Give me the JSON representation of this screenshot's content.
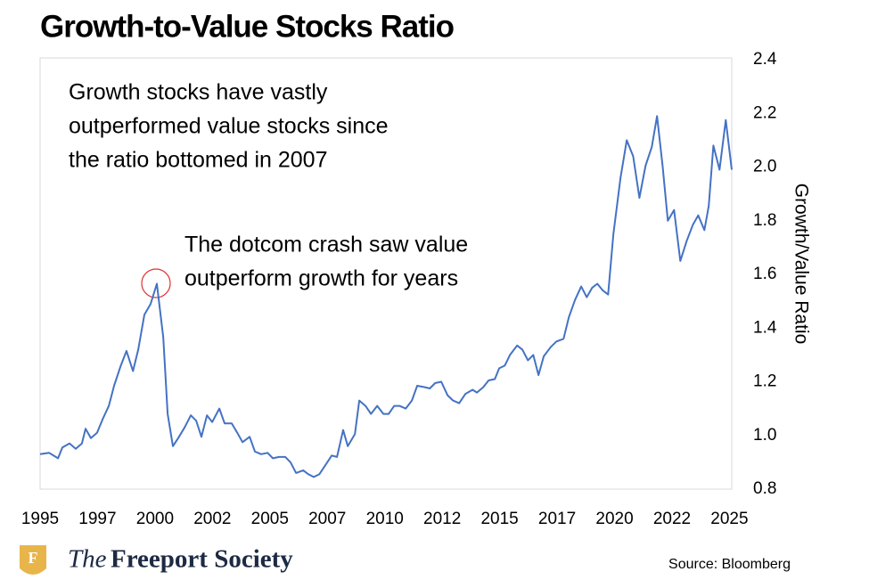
{
  "chart_data": {
    "type": "line",
    "title": "Growth-to-Value Stocks Ratio",
    "y_axis_label": "Growth/Value Ratio",
    "annotations": [
      {
        "lines": [
          "Growth stocks have vastly",
          "outperformed value stocks since",
          "the ratio bottomed in 2007"
        ]
      },
      {
        "lines": [
          "The dotcom crash saw value",
          "outperform growth for years"
        ]
      }
    ],
    "source": "Source: Bloomberg",
    "brand": {
      "logo": "F",
      "prefix": "The",
      "name": "Freeport Society"
    },
    "color": "#4472c4",
    "x": [
      1995.0,
      1995.39,
      1995.78,
      1995.97,
      1996.28,
      1996.55,
      1996.82,
      1996.98,
      1997.21,
      1997.48,
      1997.72,
      1997.99,
      1998.22,
      1998.49,
      1998.76,
      1999.04,
      1999.27,
      1999.54,
      1999.81,
      2000.08,
      2000.36,
      2000.55,
      2000.78,
      2001.01,
      2001.29,
      2001.56,
      2001.79,
      2002.02,
      2002.26,
      2002.49,
      2002.8,
      2003.03,
      2003.34,
      2003.58,
      2003.81,
      2004.12,
      2004.35,
      2004.62,
      2004.9,
      2005.13,
      2005.4,
      2005.67,
      2005.9,
      2006.14,
      2006.45,
      2006.68,
      2006.91,
      2007.15,
      2007.42,
      2007.69,
      2007.92,
      2008.19,
      2008.39,
      2008.7,
      2008.89,
      2009.16,
      2009.4,
      2009.67,
      2009.94,
      2010.17,
      2010.41,
      2010.64,
      2010.91,
      2011.18,
      2011.41,
      2011.72,
      2011.96,
      2012.19,
      2012.46,
      2012.73,
      2012.97,
      2013.24,
      2013.51,
      2013.82,
      2014.01,
      2014.29,
      2014.52,
      2014.79,
      2014.98,
      2015.22,
      2015.45,
      2015.76,
      2015.99,
      2016.23,
      2016.46,
      2016.69,
      2016.92,
      2017.23,
      2017.47,
      2017.78,
      2018.01,
      2018.28,
      2018.55,
      2018.79,
      2019.02,
      2019.25,
      2019.49,
      2019.72,
      2019.95,
      2020.26,
      2020.53,
      2020.81,
      2021.08,
      2021.35,
      2021.62,
      2021.85,
      2022.09,
      2022.32,
      2022.59,
      2022.86,
      2023.14,
      2023.41,
      2023.64,
      2023.91,
      2024.1,
      2024.3,
      2024.57,
      2024.84,
      2025.1
    ],
    "values": [
      0.93,
      0.935,
      0.915,
      0.955,
      0.97,
      0.95,
      0.97,
      1.025,
      0.99,
      1.01,
      1.06,
      1.11,
      1.185,
      1.255,
      1.315,
      1.24,
      1.32,
      1.45,
      1.49,
      1.565,
      1.365,
      1.08,
      0.96,
      0.99,
      1.03,
      1.075,
      1.055,
      0.995,
      1.075,
      1.05,
      1.1,
      1.045,
      1.045,
      1.01,
      0.975,
      0.995,
      0.94,
      0.93,
      0.935,
      0.915,
      0.92,
      0.92,
      0.9,
      0.86,
      0.87,
      0.855,
      0.845,
      0.855,
      0.89,
      0.925,
      0.92,
      1.02,
      0.96,
      1.005,
      1.13,
      1.11,
      1.08,
      1.11,
      1.08,
      1.08,
      1.11,
      1.11,
      1.1,
      1.13,
      1.185,
      1.18,
      1.175,
      1.195,
      1.2,
      1.15,
      1.13,
      1.12,
      1.155,
      1.17,
      1.16,
      1.18,
      1.205,
      1.21,
      1.25,
      1.26,
      1.3,
      1.335,
      1.32,
      1.28,
      1.3,
      1.225,
      1.295,
      1.33,
      1.35,
      1.36,
      1.44,
      1.505,
      1.555,
      1.515,
      1.55,
      1.565,
      1.54,
      1.525,
      1.75,
      1.96,
      2.1,
      2.04,
      1.885,
      2.005,
      2.075,
      2.19,
      2.005,
      1.8,
      1.84,
      1.65,
      1.725,
      1.785,
      1.82,
      1.765,
      1.855,
      2.08,
      1.99,
      2.175,
      1.99
    ],
    "xlim": [
      1995,
      2025.1
    ],
    "xticks": [
      1995,
      {
        "value": 1997.5,
        "label": "1997"
      },
      2000,
      {
        "value": 2002.5,
        "label": "2002"
      },
      2005,
      {
        "value": 2007.5,
        "label": "2007"
      },
      2010,
      {
        "value": 2012.5,
        "label": "2012"
      },
      2015,
      {
        "value": 2017.5,
        "label": "2017"
      },
      2020,
      {
        "value": 2022.5,
        "label": "2022"
      },
      2025
    ],
    "ylim": [
      0.8,
      2.4
    ],
    "yticks": [
      0.8,
      {
        "value": 1,
        "label": "1.0"
      },
      1.2,
      1.4,
      1.6,
      1.8,
      {
        "value": 2,
        "label": "2.0"
      },
      2.2,
      2.4
    ]
  }
}
